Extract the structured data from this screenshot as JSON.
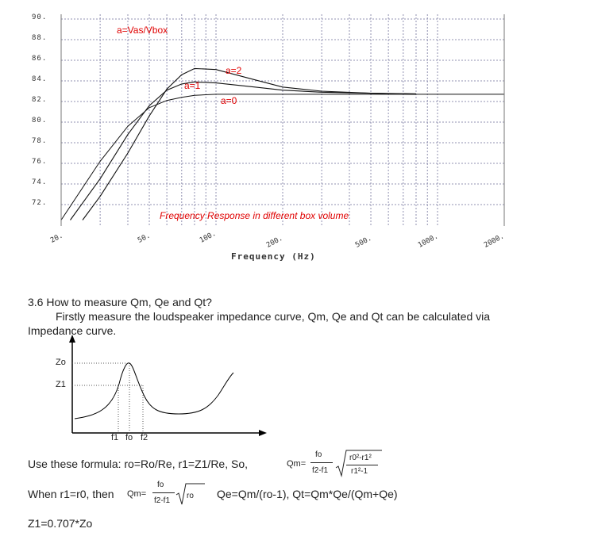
{
  "chart_data": {
    "type": "line",
    "title": "Frequency Response in different box volume",
    "legend_title": "a=Vas/Vbox",
    "xlabel": "Frequency (Hz)",
    "ylabel": "",
    "x_scale": "log",
    "xlim": [
      20,
      2000
    ],
    "ylim": [
      72,
      90
    ],
    "y_ticks": [
      "90.",
      "88.",
      "86.",
      "84.",
      "82.",
      "80.",
      "78.",
      "76.",
      "74.",
      "72."
    ],
    "x_ticks": [
      "20.",
      "50.",
      "100.",
      "200.",
      "500.",
      "1000.",
      "2000."
    ],
    "series": [
      {
        "name": "a=0",
        "x": [
          20,
          30,
          40,
          50,
          60,
          70,
          80,
          100,
          150,
          200,
          300,
          500,
          800,
          2000
        ],
        "y": [
          70.5,
          76.2,
          79.6,
          81.4,
          82.1,
          82.4,
          82.6,
          82.7,
          82.7,
          82.7,
          82.7,
          82.7,
          82.7,
          82.7
        ]
      },
      {
        "name": "a=1",
        "x": [
          22,
          30,
          40,
          50,
          60,
          70,
          80,
          100,
          150,
          200,
          300,
          500,
          800
        ],
        "y": [
          70.5,
          74.5,
          78.8,
          81.6,
          83.1,
          83.7,
          83.9,
          83.8,
          83.4,
          83.1,
          82.9,
          82.8,
          82.75
        ]
      },
      {
        "name": "a=2",
        "x": [
          25,
          30,
          40,
          50,
          60,
          70,
          80,
          100,
          150,
          200,
          300,
          500,
          800
        ],
        "y": [
          70.5,
          72.8,
          77.0,
          80.6,
          83.2,
          84.6,
          85.2,
          85.1,
          84.1,
          83.4,
          83.0,
          82.8,
          82.7
        ]
      }
    ]
  },
  "section": {
    "heading": "3.6 How to measure Qm, Qe and Qt?",
    "para_line1": "Firstly measure the loudspeaker impedance curve, Qm, Qe and Qt can be calculated via",
    "para_line2": "Impedance curve."
  },
  "impedance_diagram": {
    "y_labels": {
      "zo": "Zo",
      "z1": "Z1"
    },
    "x_labels": {
      "f1": "f1",
      "fo": "fo",
      "f2": "f2"
    }
  },
  "formulas": {
    "line1_prefix": "Use these formula: ro=Ro/Re, r1=Z1/Re,  So, ",
    "qm_label": "Qm=",
    "fo": "fo",
    "f2f1": "f2-f1",
    "sqrt_num": "r0²-r1²",
    "sqrt_den": "r1²-1",
    "line2_prefix": "When r1=r0, then ",
    "qm_label2": "Qm=",
    "fo2": "fo",
    "f2f1_2": "f2-f1",
    "ro": "ro",
    "qe_qt": "Qe=Qm/(ro-1), Qt=Qm*Qe/(Qm+Qe)",
    "z1": "Z1=0.707*Zo"
  }
}
